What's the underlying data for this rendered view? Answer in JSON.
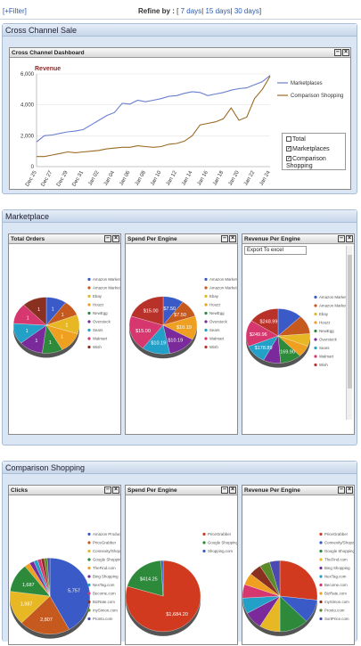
{
  "topbar": {
    "filter": "[+Filter]",
    "refine_label": "Refine by :",
    "options": [
      "7 days",
      "15 days",
      "30 days"
    ]
  },
  "sections": {
    "cross": {
      "title": "Cross Channel Sale",
      "panel_title": "Cross Channel Dashboard",
      "chart_title": "Revenue",
      "legend_top": [
        "Marketplaces",
        "Comparison Shopping"
      ],
      "toggles": [
        {
          "label": "Total",
          "checked": false
        },
        {
          "label": "Marketplaces",
          "checked": true
        },
        {
          "label": "Comparison Shopping",
          "checked": true
        }
      ]
    },
    "marketplace": {
      "title": "Marketplace",
      "panels": [
        {
          "title": "Total Orders"
        },
        {
          "title": "Spend Per Engine"
        },
        {
          "title": "Revenue Per Engine",
          "export": "Export To excel"
        }
      ]
    },
    "comparison": {
      "title": "Comparison Shopping",
      "panels": [
        {
          "title": "Clicks"
        },
        {
          "title": "Spend Per Engine"
        },
        {
          "title": "Revenue Per Engine"
        }
      ]
    }
  },
  "chart_data": [
    {
      "type": "line",
      "title": "Revenue",
      "x": [
        "Dec 25",
        "Dec 26",
        "Dec 27",
        "Dec 28",
        "Dec 29",
        "Dec 30",
        "Dec 31",
        "Jan 01",
        "Jan 02",
        "Jan 03",
        "Jan 04",
        "Jan 05",
        "Jan 06",
        "Jan 07",
        "Jan 08",
        "Jan 09",
        "Jan 10",
        "Jan 11",
        "Jan 12",
        "Jan 13",
        "Jan 14",
        "Jan 15",
        "Jan 16",
        "Jan 17",
        "Jan 18",
        "Jan 19",
        "Jan 20",
        "Jan 21",
        "Jan 22",
        "Jan 23",
        "Jan 24"
      ],
      "xticks": [
        "Dec 25",
        "Dec 27",
        "Dec 29",
        "Dec 31",
        "Jan 02",
        "Jan 04",
        "Jan 06",
        "Jan 08",
        "Jan 10",
        "Jan 12",
        "Jan 14",
        "Jan 16",
        "Jan 18",
        "Jan 20",
        "Jan 22",
        "Jan 24"
      ],
      "yticks": [
        0,
        2000,
        4000,
        6000
      ],
      "ytick_labels": [
        "0",
        "2,000",
        "4,000",
        "6,000"
      ],
      "ylim": [
        0,
        6000
      ],
      "series": [
        {
          "name": "Marketplaces",
          "color": "#6a7fcf",
          "values": [
            1600,
            2000,
            2050,
            2150,
            2250,
            2300,
            2400,
            2700,
            3000,
            3300,
            3500,
            4100,
            4050,
            4300,
            4200,
            4300,
            4400,
            4550,
            4600,
            4750,
            4850,
            4800,
            4600,
            4700,
            4800,
            4950,
            5050,
            5100,
            5300,
            5500,
            5900
          ]
        },
        {
          "name": "Comparison Shopping",
          "color": "#9b6a25",
          "values": [
            650,
            650,
            750,
            850,
            950,
            900,
            950,
            1000,
            1050,
            1150,
            1200,
            1250,
            1250,
            1350,
            1300,
            1250,
            1300,
            1450,
            1500,
            1650,
            2000,
            2700,
            2800,
            2900,
            3100,
            3800,
            3000,
            3200,
            4400,
            5000,
            5850
          ]
        }
      ]
    },
    {
      "type": "pie",
      "title": "Total Orders",
      "categories": [
        "Amazon Marketplace UK",
        "Amazon Marketplace US",
        "Ebay",
        "Houzz",
        "NewEgg",
        "Overstock",
        "Sears",
        "Walmart",
        "Wish"
      ],
      "values": [
        10,
        9,
        11,
        12,
        10,
        12,
        12,
        12,
        12
      ],
      "labels": [
        "1",
        "1",
        "1",
        "1",
        "1",
        "1",
        "1",
        "1",
        "1"
      ],
      "colors": [
        "#3a5bc7",
        "#c65a1e",
        "#e8b824",
        "#f0a020",
        "#2c8a3a",
        "#7a2a9a",
        "#22a0c8",
        "#d6376e",
        "#8a3020"
      ]
    },
    {
      "type": "pie",
      "title": "Spend Per Engine",
      "categories": [
        "Amazon Marketplace UK",
        "Amazon Marketplace US",
        "Ebay",
        "Houzz",
        "NewEgg",
        "Overstock",
        "Sears",
        "Walmart",
        "Wish"
      ],
      "values": [
        7.5,
        7.5,
        0,
        10.19,
        0,
        10.19,
        10.19,
        15.0,
        15.0
      ],
      "labels": [
        "$7.50",
        "$7.50",
        "",
        "$10.19",
        "",
        "$10.19",
        "$10.19",
        "$15.00",
        "$15.00"
      ],
      "colors": [
        "#3a5bc7",
        "#c65a1e",
        "#e8b824",
        "#f0a020",
        "#2c8a3a",
        "#7a2a9a",
        "#22a0c8",
        "#d6376e",
        "#b8322a"
      ]
    },
    {
      "type": "pie",
      "title": "Revenue Per Engine",
      "categories": [
        "Amazon Marketplace UK",
        "Amazon Marketplace US",
        "Ebay",
        "Houzz",
        "NewEgg",
        "Overstock",
        "Sears",
        "Walmart",
        "Wish"
      ],
      "values": [
        199,
        178.89,
        120,
        110,
        169.9,
        140,
        178.89,
        249.96,
        248.99
      ],
      "labels": [
        "",
        "",
        "",
        "",
        "$169.90",
        "",
        "$178.89",
        "$249.96",
        "$248.99"
      ],
      "colors": [
        "#3a5bc7",
        "#c65a1e",
        "#e8b824",
        "#f0a020",
        "#2c8a3a",
        "#7a2a9a",
        "#22a0c8",
        "#d6376e",
        "#b8322a"
      ]
    },
    {
      "type": "pie",
      "title": "Clicks",
      "categories": [
        "Amazon Product Ads",
        "PriceGrabber",
        "Connexity/Shopzill...",
        "Google Shopping",
        "TheFind.com",
        "Bing Shopping",
        "NexTag.com",
        "Become.com",
        "BizRate.com",
        "mySimon.com",
        "Pronto.com"
      ],
      "values": [
        5757,
        2807,
        1987,
        1687,
        300,
        250,
        220,
        200,
        180,
        160,
        150
      ],
      "labels": [
        "5,757",
        "2,807",
        "1,987",
        "1,687",
        "",
        "",
        "",
        "",
        "",
        "",
        ""
      ],
      "colors": [
        "#3a5bc7",
        "#c65a1e",
        "#e8b824",
        "#2c8a3a",
        "#f0a020",
        "#7a2a9a",
        "#22a0c8",
        "#d6376e",
        "#8a3020",
        "#5a8a2a",
        "#4a4ab0"
      ]
    },
    {
      "type": "pie",
      "title": "Spend Per Engine",
      "categories": [
        "PriceGrabber",
        "Google Shopping",
        "Shopping.com"
      ],
      "values": [
        1684.2,
        414.25,
        20
      ],
      "labels": [
        "$1,684.20",
        "$414.25",
        ""
      ],
      "colors": [
        "#d13a1e",
        "#2c8a3a",
        "#3a5bc7"
      ]
    },
    {
      "type": "pie",
      "title": "Revenue Per Engine",
      "categories": [
        "PriceGrabber",
        "Connexity/Shopzill...",
        "Google Shopping",
        "TheFind.com",
        "Bing Shopping",
        "NexTag.com",
        "Become.com",
        "BizRate.com",
        "mySimon.com",
        "Pronto.com",
        "SortPrice.com"
      ],
      "values": [
        30,
        12,
        14,
        10,
        9,
        8,
        7,
        6,
        6,
        5,
        5
      ],
      "labels": [
        "",
        "",
        "",
        "",
        "",
        "",
        "",
        "",
        "",
        "",
        ""
      ],
      "colors": [
        "#d13a1e",
        "#3a5bc7",
        "#2c8a3a",
        "#e8b824",
        "#7a2a9a",
        "#22a0c8",
        "#d6376e",
        "#f0a020",
        "#8a3020",
        "#5a8a2a",
        "#4a4ab0"
      ]
    }
  ]
}
